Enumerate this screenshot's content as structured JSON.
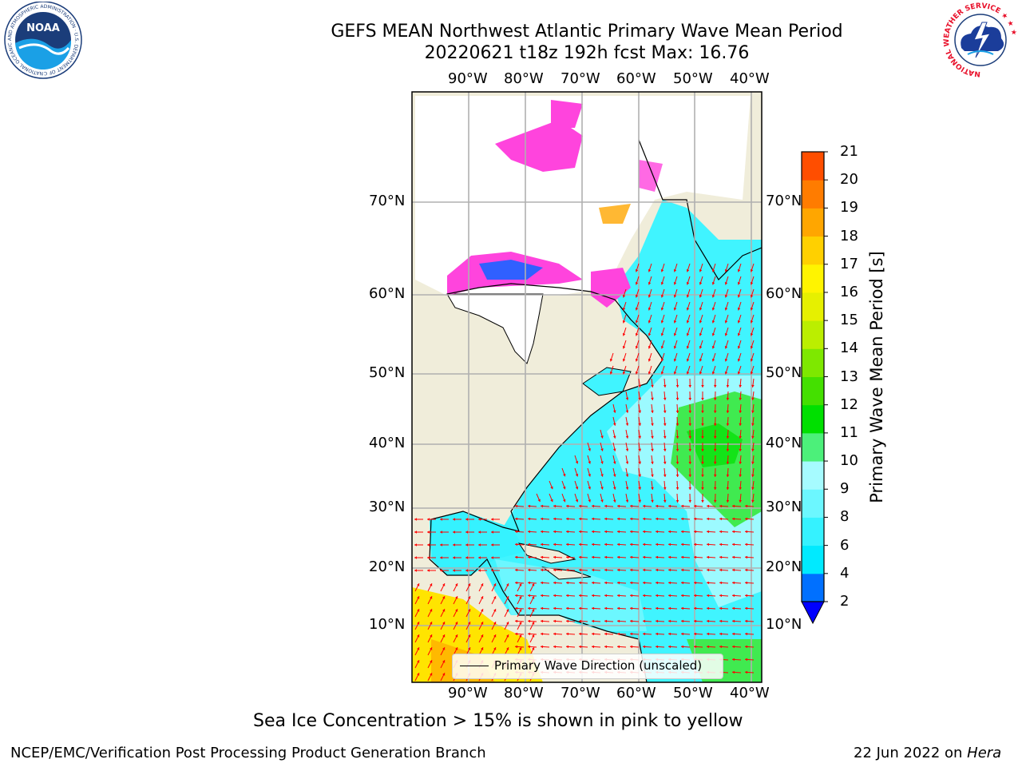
{
  "title_line1": "GEFS MEAN Northwest Atlantic Primary Wave Mean Period",
  "title_line2": "20220621 t18z 192h fcst   Max: 16.76",
  "lon_labels": [
    "90°W",
    "80°W",
    "70°W",
    "60°W",
    "50°W",
    "40°W"
  ],
  "lat_labels": [
    "70°N",
    "60°N",
    "50°N",
    "40°N",
    "30°N",
    "20°N",
    "10°N"
  ],
  "legend_label": "Primary Wave Direction (unscaled)",
  "colorbar": {
    "label": "Primary Wave Mean Period [s]",
    "ticks": [
      "2",
      "4",
      "6",
      "8",
      "9",
      "10",
      "11",
      "12",
      "13",
      "14",
      "15",
      "16",
      "17",
      "18",
      "19",
      "20",
      "21"
    ],
    "colors": [
      "#0070ff",
      "#00eaff",
      "#35f2ff",
      "#6cf7ff",
      "#a6fbff",
      "#4cf07a",
      "#00e000",
      "#44e000",
      "#7ee800",
      "#bbee00",
      "#e6f000",
      "#fff400",
      "#ffd000",
      "#ffa600",
      "#ff7c00",
      "#ff4e00",
      "#ff1800",
      "#ff0000"
    ],
    "extend_color": "#0000ff"
  },
  "notes": {
    "sea_ice": "Sea Ice Concentration > 15% is shown in pink to yellow",
    "branch": "NCEP/EMC/Verification Post Processing Product Generation Branch",
    "date": "22 Jun 2022 on",
    "host": "Hera"
  },
  "logos": {
    "noaa_text": "NOAA",
    "noaa_ring": "NATIONAL OCEANIC AND ATMOSPHERIC ADMINISTRATION · U.S. DEPARTMENT OF COMMERCE ·",
    "nws_ring": "NATIONAL WEATHER SERVICE ★ ★ ★"
  },
  "colors": {
    "land": "#f0edda",
    "arrow": "#ff0000",
    "ice_pink": "#ff44dd",
    "ocean_cyan": "#40f4ff",
    "ocean_light": "#a6fbff",
    "swell_green": "#40ea50",
    "tropic_yellow": "#ffe400"
  }
}
